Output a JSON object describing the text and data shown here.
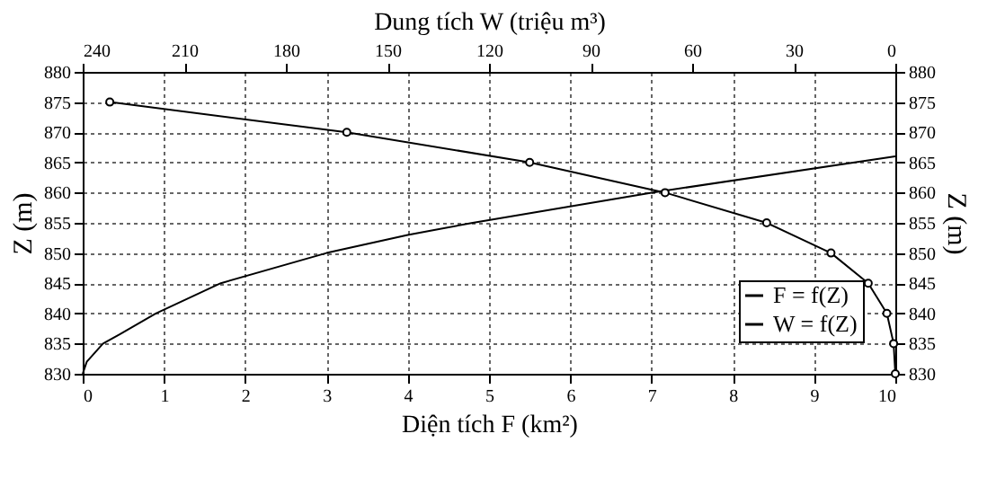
{
  "chart_data": {
    "type": "line",
    "xlabel": "Diện tích F (km²)",
    "x2label": "Dung tích W (triệu m³)",
    "ylabel": "Z (m)",
    "y2label": "Z (m)",
    "xlim": [
      0,
      10
    ],
    "xticks": [
      0,
      1,
      2,
      3,
      4,
      5,
      6,
      7,
      8,
      9,
      10
    ],
    "x2lim": [
      240,
      0
    ],
    "x2ticks": [
      240,
      210,
      180,
      150,
      120,
      90,
      60,
      30,
      0
    ],
    "ylim": [
      830,
      880
    ],
    "yticks": [
      830,
      835,
      840,
      845,
      850,
      855,
      860,
      865,
      870,
      875,
      880
    ],
    "y2lim": [
      830,
      880
    ],
    "y2ticks": [
      830,
      835,
      840,
      845,
      850,
      855,
      860,
      865,
      870,
      875,
      880
    ],
    "grid": true,
    "legend": "bottom right",
    "series": [
      {
        "name": "F = f(Z)",
        "color": "#000000",
        "marker": "none",
        "x": [
          0,
          0.05,
          0.25,
          0.45,
          0.9,
          1.7,
          3.0,
          4.0,
          4.8,
          7.0,
          10
        ],
        "values": [
          830,
          832,
          835,
          836.5,
          840,
          845,
          850,
          853,
          855,
          860,
          866
        ]
      },
      {
        "name": "W = f(Z)",
        "color": "#000000",
        "marker": "circle",
        "axis": "x2",
        "x": [
          0,
          0.5,
          2.5,
          8,
          19,
          38,
          68,
          108,
          162,
          232
        ],
        "values": [
          830,
          835,
          840,
          845,
          850,
          855,
          860,
          865,
          870,
          875
        ]
      }
    ]
  }
}
